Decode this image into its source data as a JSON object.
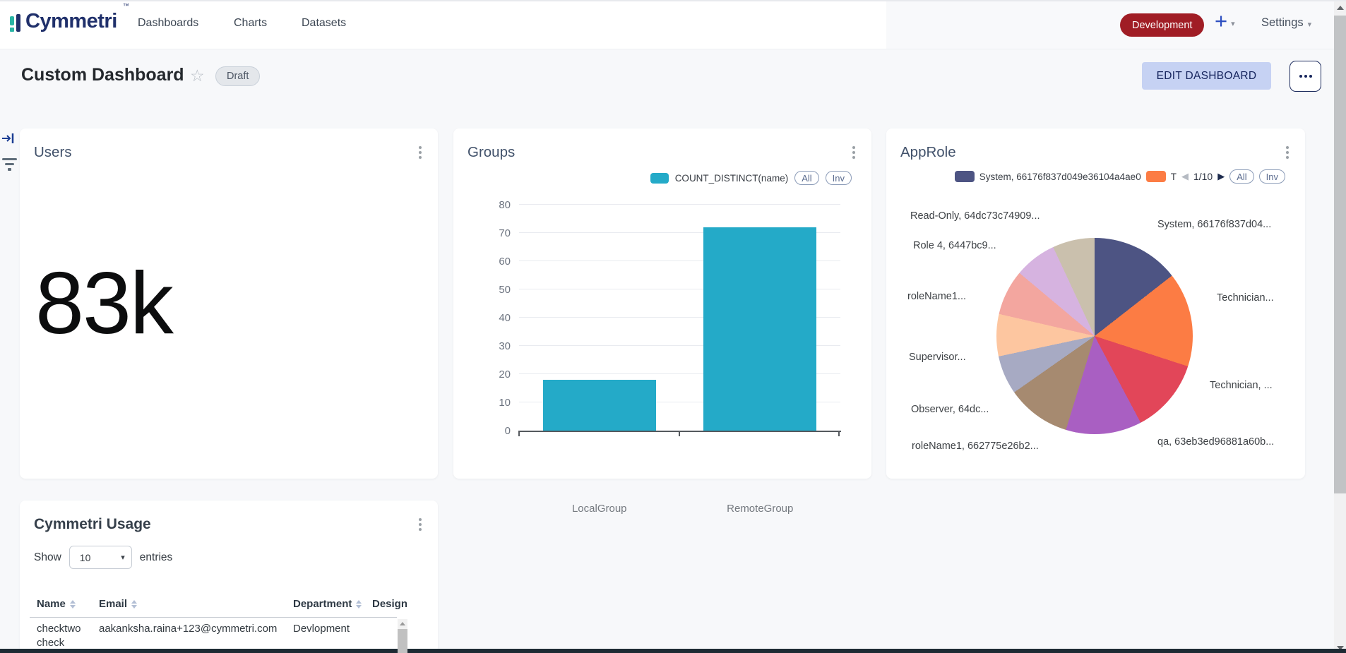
{
  "icons": {
    "star": "☆",
    "chevron_down": "▾",
    "caret_left": "◀",
    "caret_right": "▶"
  },
  "navbar": {
    "brand": "Cymmetri",
    "brand_tm": "™",
    "links": [
      {
        "label": "Dashboards"
      },
      {
        "label": "Charts"
      },
      {
        "label": "Datasets"
      }
    ],
    "environment_badge": "Development",
    "add_button": "+",
    "settings_label": "Settings"
  },
  "page_header": {
    "title": "Custom Dashboard",
    "status_badge": "Draft",
    "edit_button": "EDIT DASHBOARD"
  },
  "users_card": {
    "title": "Users",
    "big_number": "83k"
  },
  "groups_card": {
    "title": "Groups",
    "legend_label": "COUNT_DISTINCT(name)",
    "all_button": "All",
    "inv_button": "Inv"
  },
  "approle_card": {
    "title": "AppRole",
    "legend_item_1": "System, 66176f837d049e36104a4ae0",
    "legend_item_2": "T",
    "pagination": "1/10",
    "all_button": "All",
    "inv_button": "Inv"
  },
  "usage_card": {
    "title": "Cymmetri Usage",
    "show_label": "Show",
    "page_size": "10",
    "entries_label": "entries",
    "table": {
      "headers": [
        {
          "label": "Name",
          "sortable": true
        },
        {
          "label": "Email",
          "sortable": true
        },
        {
          "label": "Department",
          "sortable": true
        },
        {
          "label": "Design",
          "sortable": false
        }
      ],
      "rows": [
        {
          "name": "checktwo check",
          "email": "aakanksha.raina+123@cymmetri.com",
          "department": "Devlopment"
        }
      ]
    }
  },
  "chart_data": [
    {
      "id": "groups_bar",
      "type": "bar",
      "title": "Groups",
      "categories": [
        "LocalGroup",
        "RemoteGroup"
      ],
      "series": [
        {
          "name": "COUNT_DISTINCT(name)",
          "values": [
            18,
            72
          ]
        }
      ],
      "ylim": [
        0,
        80
      ],
      "ytick_step": 10,
      "grid": true,
      "legend_position": "top-right",
      "bar_color": "#24aac8"
    },
    {
      "id": "approle_pie",
      "type": "pie",
      "title": "AppRole",
      "unit": "degrees",
      "slices": [
        {
          "label": "System, 66176f837d04...",
          "degrees": 52,
          "color": "#4d5483"
        },
        {
          "label": "Technician...",
          "degrees": 56,
          "color": "#fc7c44"
        },
        {
          "label": "Technician, ...",
          "degrees": 44,
          "color": "#e24659"
        },
        {
          "label": "qa, 63eb3ed96881a60b...",
          "degrees": 45,
          "color": "#a95fc2"
        },
        {
          "label": "roleName1, 662775e26b2...",
          "degrees": 38,
          "color": "#a68a70"
        },
        {
          "label": "Observer, 64dc...",
          "degrees": 23,
          "color": "#a7aac3"
        },
        {
          "label": "Supervisor...",
          "degrees": 25,
          "color": "#fdc6a0"
        },
        {
          "label": "roleName1...",
          "degrees": 27,
          "color": "#f3a69f"
        },
        {
          "label": "Role 4, 6447bc9...",
          "degrees": 25,
          "color": "#d6b3e0"
        },
        {
          "label": "Read-Only, 64dc73c74909...",
          "degrees": 25,
          "color": "#cac0ad"
        }
      ]
    }
  ]
}
